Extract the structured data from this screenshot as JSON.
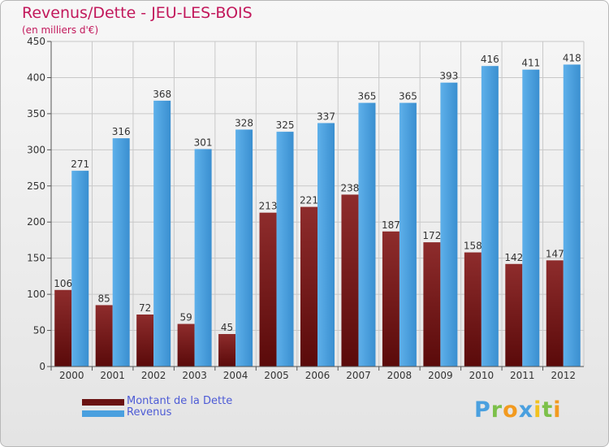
{
  "chart_data": {
    "type": "bar",
    "title": "Revenus/Dette - JEU-LES-BOIS",
    "subtitle": "(en milliers d'€)",
    "categories": [
      "2000",
      "2001",
      "2002",
      "2003",
      "2004",
      "2005",
      "2006",
      "2007",
      "2008",
      "2009",
      "2010",
      "2011",
      "2012"
    ],
    "series": [
      {
        "name": "Montant de la Dette",
        "color": "#7a1e1e",
        "values": [
          106,
          85,
          72,
          59,
          45,
          213,
          221,
          238,
          187,
          172,
          158,
          142,
          147
        ]
      },
      {
        "name": "Revenus",
        "color": "#4aa0df",
        "values": [
          271,
          316,
          368,
          301,
          328,
          325,
          337,
          365,
          365,
          393,
          416,
          411,
          418
        ]
      }
    ],
    "ylim": [
      0,
      450
    ],
    "yticks": [
      0,
      50,
      100,
      150,
      200,
      250,
      300,
      350,
      400,
      450
    ],
    "grid": true,
    "legend_position": "bottom-left",
    "data_labels": true
  },
  "logo": {
    "letters": [
      {
        "char": "P",
        "color": "#4aa0df"
      },
      {
        "char": "r",
        "color": "#7cc04a"
      },
      {
        "char": "o",
        "color": "#f29a1f"
      },
      {
        "char": "x",
        "color": "#4aa0df"
      },
      {
        "char": "i",
        "color": "#f2c21f"
      },
      {
        "char": "t",
        "color": "#7cc04a"
      },
      {
        "char": "i",
        "color": "#f29a1f"
      }
    ]
  }
}
